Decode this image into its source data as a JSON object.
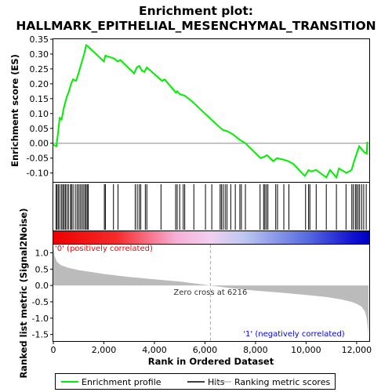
{
  "chart_data": {
    "type": "line",
    "title_line1": "Enrichment plot:",
    "title_line2": "HALLMARK_EPITHELIAL_MESENCHYMAL_TRANSITION",
    "es_ylabel": "Enrichment score (ES)",
    "metric_ylabel": "Ranked list metric (Signal2Noise)",
    "xlabel": "Rank in Ordered Dataset",
    "xlim": [
      0,
      12500
    ],
    "x_ticks": [
      "0",
      "2,000",
      "4,000",
      "6,000",
      "8,000",
      "10,000",
      "12,000"
    ],
    "x_tick_values": [
      0,
      2000,
      4000,
      6000,
      8000,
      10000,
      12000
    ],
    "es_ylim": [
      -0.13,
      0.35
    ],
    "es_ticks": [
      "-0.10",
      "-0.05",
      "0.00",
      "0.05",
      "0.10",
      "0.15",
      "0.20",
      "0.25",
      "0.30",
      "0.35"
    ],
    "es_tick_values": [
      -0.1,
      -0.05,
      0.0,
      0.05,
      0.1,
      0.15,
      0.2,
      0.25,
      0.3,
      0.35
    ],
    "metric_ylim": [
      -1.7,
      1.25
    ],
    "metric_ticks": [
      "-1.5",
      "-1.0",
      "-0.5",
      "0.0",
      "0.5",
      "1.0"
    ],
    "metric_tick_values": [
      -1.5,
      -1.0,
      -0.5,
      0.0,
      0.5,
      1.0
    ],
    "grid": false,
    "zero_cross_label": "Zero cross at 6216",
    "zero_cross": 6216,
    "positive_label": "'0' (positively correlated)",
    "negative_label": "'1' (negatively correlated)",
    "legend": {
      "placement": "bottom",
      "items": [
        "Enrichment profile",
        "Hits",
        "Ranking metric scores"
      ]
    },
    "colors": {
      "enrichment": "#00ee00",
      "hits": "#000000",
      "metric_fill": "#bbbbbb",
      "positive_label": "#ff0000",
      "negative_label": "#0000ff",
      "zero_line": "#888888"
    },
    "es_profile": {
      "x": [
        0,
        120,
        180,
        250,
        330,
        420,
        480,
        550,
        620,
        700,
        780,
        900,
        1000,
        1080,
        1150,
        1220,
        1300,
        1380,
        2000,
        2060,
        2400,
        2550,
        2650,
        3200,
        3300,
        3400,
        3500,
        3600,
        3700,
        4300,
        4400,
        4850,
        4900,
        5000,
        5200,
        5500,
        6000,
        6500,
        6700,
        6900,
        7100,
        7400,
        7600,
        8200,
        8350,
        8450,
        8700,
        8850,
        9100,
        9300,
        9500,
        9950,
        10100,
        10200,
        10400,
        10800,
        10950,
        11200,
        11300,
        11600,
        11800,
        11900,
        12000,
        12100,
        12200,
        12300,
        12400,
        12420
      ],
      "y": [
        -0.005,
        -0.01,
        0.03,
        0.085,
        0.08,
        0.12,
        0.14,
        0.16,
        0.175,
        0.2,
        0.215,
        0.21,
        0.235,
        0.26,
        0.28,
        0.3,
        0.33,
        0.325,
        0.275,
        0.295,
        0.285,
        0.275,
        0.28,
        0.235,
        0.255,
        0.26,
        0.245,
        0.24,
        0.255,
        0.21,
        0.215,
        0.17,
        0.175,
        0.165,
        0.16,
        0.14,
        0.1,
        0.06,
        0.045,
        0.04,
        0.03,
        0.01,
        0.0,
        -0.05,
        -0.045,
        -0.04,
        -0.06,
        -0.05,
        -0.055,
        -0.06,
        -0.07,
        -0.11,
        -0.09,
        -0.095,
        -0.09,
        -0.115,
        -0.09,
        -0.115,
        -0.085,
        -0.1,
        -0.09,
        -0.06,
        -0.035,
        -0.01,
        -0.02,
        -0.03,
        -0.035,
        0.005
      ]
    },
    "hits": [
      110,
      150,
      200,
      260,
      330,
      380,
      430,
      480,
      540,
      600,
      680,
      720,
      780,
      870,
      940,
      1000,
      1060,
      1120,
      1180,
      1240,
      1290,
      1340,
      1380,
      2020,
      2060,
      2380,
      2560,
      3240,
      3320,
      3400,
      3460,
      3640,
      3700,
      4260,
      4840,
      4900,
      5000,
      5140,
      5200,
      5560,
      6020,
      6270,
      6600,
      6650,
      6720,
      6800,
      6870,
      7020,
      7200,
      7380,
      7440,
      7600,
      8180,
      8320,
      8370,
      8430,
      8490,
      8800,
      8870,
      9120,
      9320,
      9980,
      10100,
      10150,
      10400,
      10800,
      11200,
      11580,
      11810,
      11870,
      11950,
      12000,
      12060,
      12120,
      12200,
      12280,
      12380
    ],
    "metric_profile": {
      "x": [
        0,
        50,
        150,
        300,
        600,
        1000,
        2000,
        3000,
        4000,
        5000,
        6216,
        7000,
        8000,
        9000,
        10000,
        10800,
        11400,
        11800,
        12000,
        12200,
        12330,
        12400,
        12450,
        12470
      ],
      "y": [
        1.2,
        0.9,
        0.72,
        0.62,
        0.54,
        0.47,
        0.35,
        0.26,
        0.19,
        0.12,
        0.0,
        -0.08,
        -0.16,
        -0.22,
        -0.29,
        -0.35,
        -0.43,
        -0.5,
        -0.56,
        -0.65,
        -0.8,
        -1.0,
        -1.35,
        -1.6
      ]
    }
  }
}
